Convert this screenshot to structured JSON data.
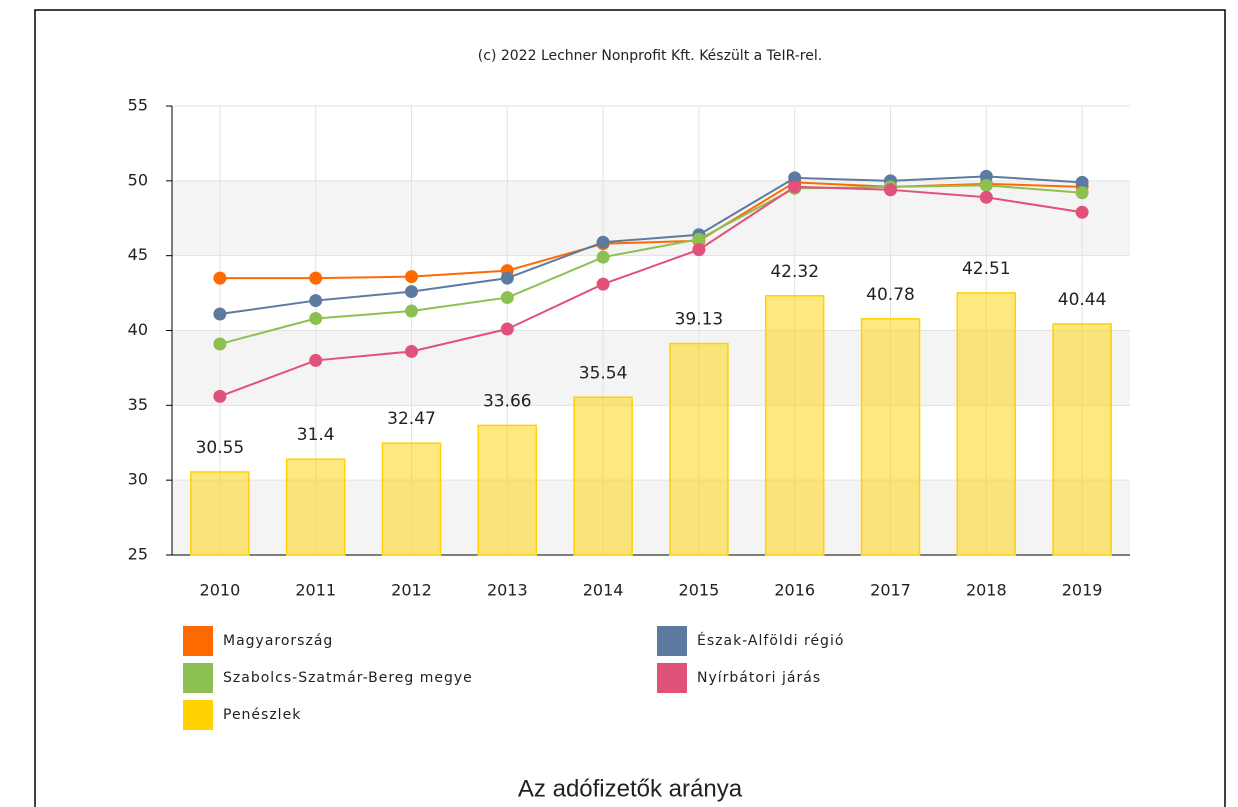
{
  "chart_data": {
    "type": "combo",
    "title": "Az adófizetők aránya",
    "subtitle": "(c) 2022 Lechner Nonprofit Kft. Készült a TeIR-rel.",
    "categories": [
      "2010",
      "2011",
      "2012",
      "2013",
      "2014",
      "2015",
      "2016",
      "2017",
      "2018",
      "2019"
    ],
    "ylim": [
      25,
      55
    ],
    "yticks": [
      25,
      30,
      35,
      40,
      45,
      50,
      55
    ],
    "grid": true,
    "series": [
      {
        "name": "Magyarország",
        "type": "line",
        "color": "#ff6a00",
        "values": [
          43.5,
          43.5,
          43.6,
          44.0,
          45.8,
          46.0,
          49.9,
          49.6,
          49.8,
          49.6
        ]
      },
      {
        "name": "Észak-Alföldi régió",
        "type": "line",
        "color": "#5d7ba0",
        "values": [
          41.1,
          42.0,
          42.6,
          43.5,
          45.9,
          46.4,
          50.2,
          50.0,
          50.3,
          49.9
        ]
      },
      {
        "name": "Szabolcs-Szatmár-Bereg megye",
        "type": "line",
        "color": "#8cc152",
        "values": [
          39.1,
          40.8,
          41.3,
          42.2,
          44.9,
          46.1,
          49.5,
          49.6,
          49.7,
          49.2
        ]
      },
      {
        "name": "Nyírbátori járás",
        "type": "line",
        "color": "#e0527a",
        "values": [
          35.6,
          38.0,
          38.6,
          40.1,
          43.1,
          45.4,
          49.6,
          49.4,
          48.9,
          47.9
        ]
      },
      {
        "name": "Penészlek",
        "type": "bar",
        "color": "#ffd200",
        "values": [
          30.55,
          31.4,
          32.47,
          33.66,
          35.54,
          39.13,
          42.32,
          40.78,
          42.51,
          40.44
        ]
      }
    ]
  }
}
